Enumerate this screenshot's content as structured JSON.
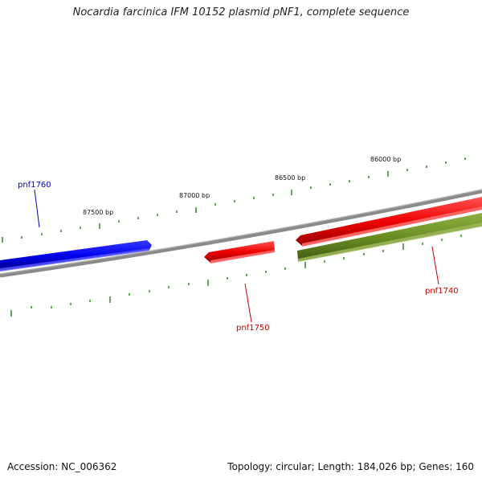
{
  "title": "Nocardia farcinica IFM 10152 plasmid pNF1, complete sequence",
  "footer": {
    "accession": "Accession: NC_006362",
    "summary": "Topology: circular; Length: 184,026 bp; Genes: 160"
  },
  "ruler_labels": [
    {
      "text": "86000 bp"
    },
    {
      "text": "86500 bp"
    },
    {
      "text": "87000 bp"
    },
    {
      "text": "87500 bp"
    }
  ],
  "genes": [
    {
      "name": "pnf1760",
      "strand": "forward",
      "color": "#0000ee"
    },
    {
      "name": "pnf1750",
      "strand": "reverse",
      "color": "#ee0000"
    },
    {
      "name": "pnf1740",
      "strand": "reverse",
      "color": "#ee0000"
    },
    {
      "name": "pnf1740-cds",
      "strand": "reverse",
      "color": "#6b8e23"
    }
  ],
  "colors": {
    "backbone": "#888888",
    "tick": "#2e8b22",
    "forward_gene": "#0000ee",
    "reverse_gene": "#ee0000",
    "cds": "#6b8e23"
  }
}
